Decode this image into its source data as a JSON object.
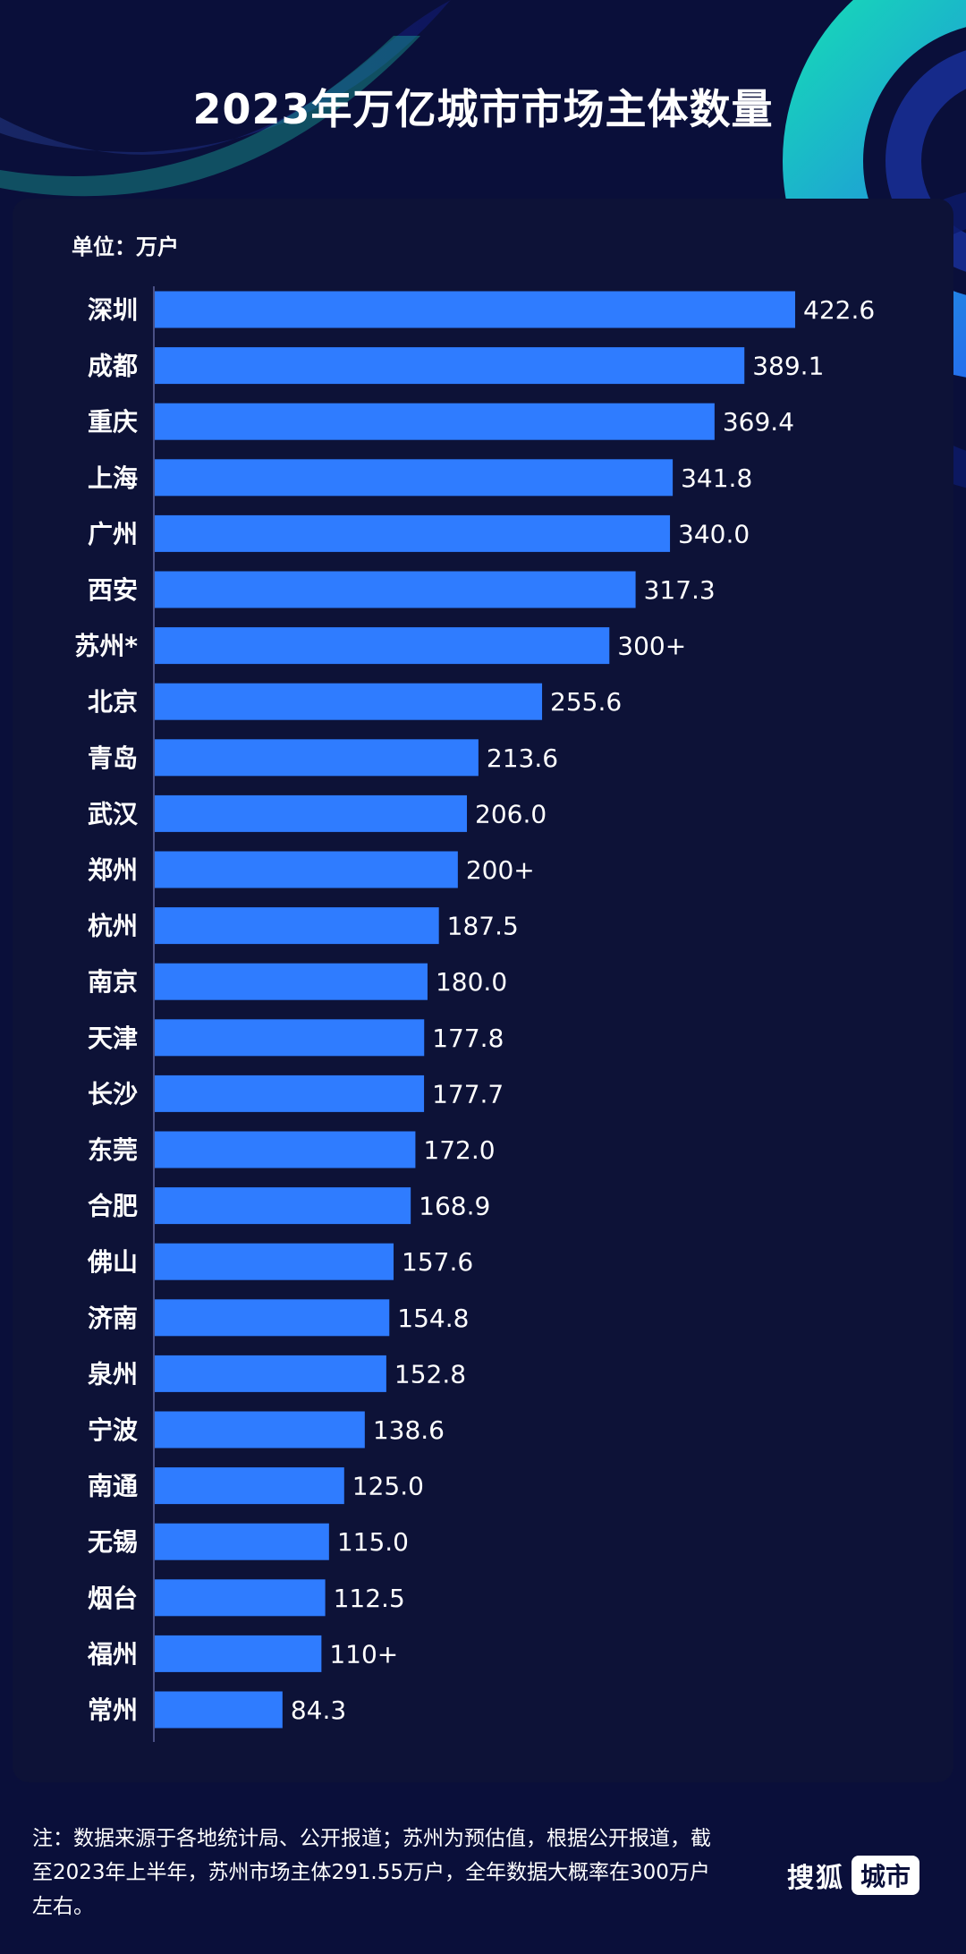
{
  "header": {
    "title": "2023年万亿城市市场主体数量"
  },
  "unit_label": "单位：万户",
  "colors": {
    "bar": "#2f7cff",
    "background": "#0a0f3a",
    "panel": "#0d1237",
    "accent": "#20d3c2"
  },
  "chart_data": {
    "type": "bar",
    "orientation": "horizontal",
    "title": "2023年万亿城市市场主体数量",
    "xlabel": "",
    "ylabel": "",
    "categories": [
      "深圳",
      "成都",
      "重庆",
      "上海",
      "广州",
      "西安",
      "苏州*",
      "北京",
      "青岛",
      "武汉",
      "郑州",
      "杭州",
      "南京",
      "天津",
      "长沙",
      "东莞",
      "合肥",
      "佛山",
      "济南",
      "泉州",
      "宁波",
      "南通",
      "无锡",
      "烟台",
      "福州",
      "常州"
    ],
    "values": [
      422.6,
      389.1,
      369.4,
      341.8,
      340.0,
      317.3,
      300,
      255.6,
      213.6,
      206.0,
      200,
      187.5,
      180.0,
      177.8,
      177.7,
      172.0,
      168.9,
      157.6,
      154.8,
      152.8,
      138.6,
      125.0,
      115.0,
      112.5,
      110,
      84.3
    ],
    "data_labels": [
      "422.6",
      "389.1",
      "369.4",
      "341.8",
      "340.0",
      "317.3",
      "300+",
      "255.6",
      "213.6",
      "206.0",
      "200+",
      "187.5",
      "180.0",
      "177.8",
      "177.7",
      "172.0",
      "168.9",
      "157.6",
      "154.8",
      "152.8",
      "138.6",
      "125.0",
      "115.0",
      "112.5",
      "110+",
      "84.3"
    ],
    "xlim": [
      0,
      422.6
    ],
    "grid": false,
    "legend": "none"
  },
  "footnote": "注：数据来源于各地统计局、公开报道；苏州为预估值，根据公开报道，截至2023年上半年，苏州市场主体291.55万户，全年数据大概率在300万户左右。",
  "logo": {
    "text": "搜狐",
    "badge": "城市"
  }
}
